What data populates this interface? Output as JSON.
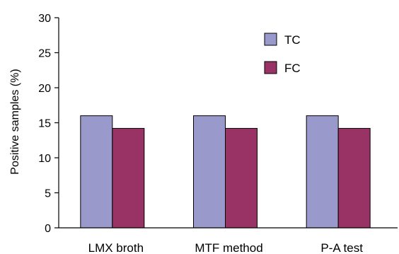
{
  "chart_data": {
    "type": "bar",
    "title": "",
    "xlabel": "",
    "ylabel": "Positive samples (%)",
    "ylim": [
      0,
      30
    ],
    "yticks": [
      0,
      5,
      10,
      15,
      20,
      25,
      30
    ],
    "grid": false,
    "legend_position": "top-right",
    "categories": [
      "LMX broth",
      "MTF method",
      "P-A test"
    ],
    "series": [
      {
        "name": "TC",
        "color": "#9999cc",
        "values": [
          16,
          16,
          16
        ]
      },
      {
        "name": "FC",
        "color": "#993366",
        "values": [
          14.2,
          14.2,
          14.2
        ]
      }
    ]
  }
}
